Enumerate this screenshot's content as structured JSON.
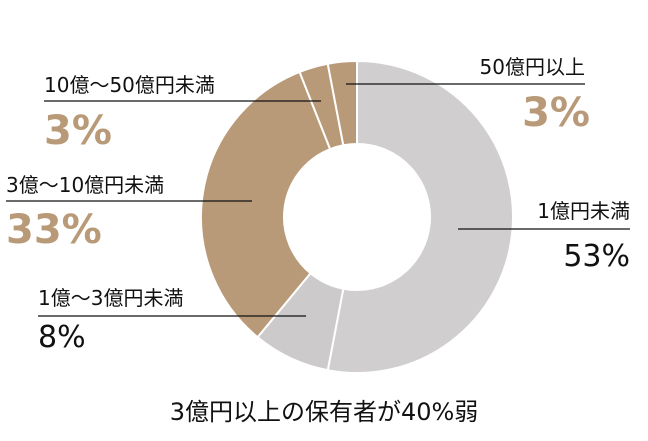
{
  "chart_data": {
    "type": "pie",
    "variant": "donut",
    "title": "3億円以上の保有者が40%弱",
    "slices": [
      {
        "label": "1億円未満",
        "value": 53,
        "value_label": "53%",
        "color": "#d0cece",
        "label_color": "#111111"
      },
      {
        "label": "1億～3億円未満",
        "value": 8,
        "value_label": "8%",
        "color": "#cccaca",
        "label_color": "#111111"
      },
      {
        "label": "3億～10億円未満",
        "value": 33,
        "value_label": "33%",
        "color": "#b99a78",
        "label_color": "#b99a78"
      },
      {
        "label": "10億～50億円未満",
        "value": 3,
        "value_label": "3%",
        "color": "#b99a78",
        "label_color": "#b99a78"
      },
      {
        "label": "50億円以上",
        "value": 3,
        "value_label": "3%",
        "color": "#b99a78",
        "label_color": "#b99a78"
      }
    ],
    "legend": "none",
    "start_angle": "12 o'clock",
    "direction": "clockwise"
  }
}
